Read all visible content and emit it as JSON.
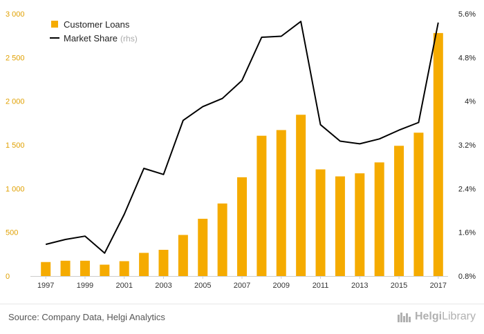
{
  "chart_data": {
    "type": "bar",
    "categories": [
      "1997",
      "1998",
      "1999",
      "2000",
      "2001",
      "2002",
      "2003",
      "2004",
      "2005",
      "2006",
      "2007",
      "2008",
      "2009",
      "2010",
      "2011",
      "2012",
      "2013",
      "2014",
      "2015",
      "2016",
      "2017"
    ],
    "x_tick_labels": [
      "1997",
      "1999",
      "2001",
      "2003",
      "2005",
      "2007",
      "2009",
      "2011",
      "2013",
      "2015",
      "2017"
    ],
    "series": [
      {
        "name": "Customer Loans",
        "type": "bar",
        "axis": "left",
        "color": "#f5ab00",
        "values": [
          160,
          175,
          175,
          130,
          170,
          265,
          300,
          470,
          655,
          830,
          1130,
          1605,
          1670,
          1845,
          1220,
          1140,
          1175,
          1300,
          1490,
          1640,
          2780
        ]
      },
      {
        "name": "Market Share",
        "note": "(rhs)",
        "type": "line",
        "axis": "right",
        "color": "#000000",
        "values": [
          1.38,
          1.47,
          1.53,
          1.22,
          1.93,
          2.77,
          2.66,
          3.65,
          3.9,
          4.05,
          4.38,
          5.17,
          5.19,
          5.46,
          3.57,
          3.27,
          3.22,
          3.31,
          3.47,
          3.61,
          5.44
        ]
      }
    ],
    "y_left": {
      "range": [
        0,
        3000
      ],
      "ticks": [
        0,
        500,
        1000,
        1500,
        2000,
        2500,
        3000
      ],
      "tick_labels": [
        "0",
        "500",
        "1 000",
        "1 500",
        "2 000",
        "2 500",
        "3 000"
      ]
    },
    "y_right": {
      "range": [
        0.8,
        5.6
      ],
      "ticks": [
        0.8,
        1.6,
        2.4,
        3.2,
        4.0,
        4.8,
        5.6
      ],
      "tick_labels": [
        "0.8%",
        "1.6%",
        "2.4%",
        "3.2%",
        "4%",
        "4.8%",
        "5.6%"
      ]
    },
    "legend": {
      "placement": "top-left"
    },
    "grid": false
  },
  "footer": {
    "source": "Source: Company Data, Helgi Analytics",
    "brand_prefix": "Helgi",
    "brand_suffix": "Library"
  },
  "colors": {
    "bar": "#f5ab00",
    "line": "#000000",
    "left_axis_text": "#e0a000"
  }
}
